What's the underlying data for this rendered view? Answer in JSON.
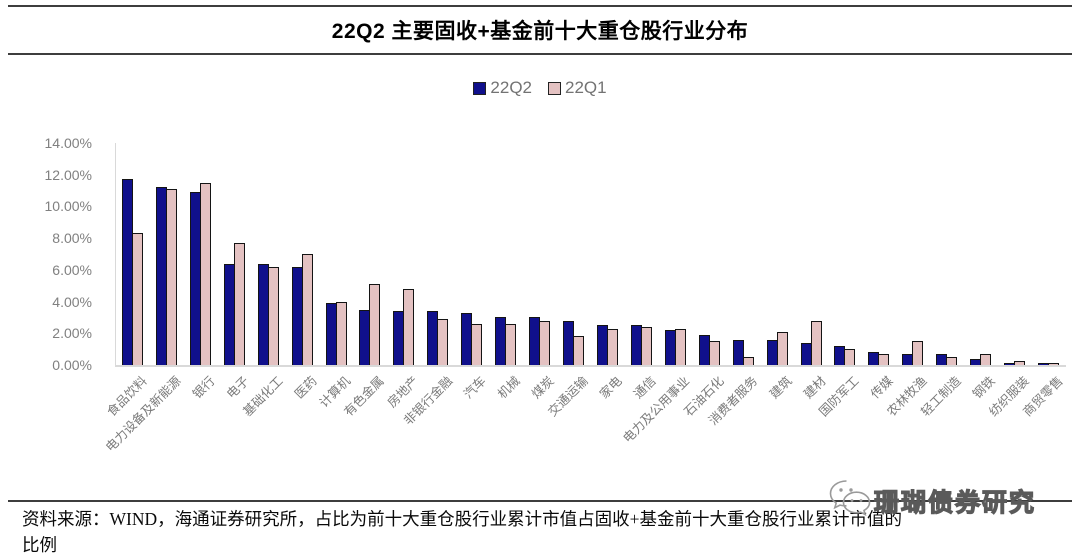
{
  "header": {
    "title": "22Q2 主要固收+基金前十大重仓股行业分布"
  },
  "legend": {
    "items": [
      {
        "label": "22Q2",
        "color": "#10108C"
      },
      {
        "label": "22Q1",
        "color": "#E4C2C2"
      }
    ]
  },
  "chart_data": {
    "type": "bar",
    "title": "22Q2 主要固收+基金前十大重仓股行业分布",
    "categories": [
      "食品饮料",
      "电力设备及新能源",
      "银行",
      "电子",
      "基础化工",
      "医药",
      "计算机",
      "有色金属",
      "房地产",
      "非银行金融",
      "汽车",
      "机械",
      "煤炭",
      "交通运输",
      "家电",
      "通信",
      "电力及公用事业",
      "石油石化",
      "消费者服务",
      "建筑",
      "建材",
      "国防军工",
      "传媒",
      "农林牧渔",
      "轻工制造",
      "钢铁",
      "纺织服装",
      "商贸零售"
    ],
    "series": [
      {
        "name": "22Q2",
        "color": "#10108C",
        "values": [
          11.7,
          11.2,
          10.9,
          6.4,
          6.4,
          6.2,
          3.9,
          3.5,
          3.4,
          3.4,
          3.3,
          3.0,
          3.0,
          2.8,
          2.5,
          2.5,
          2.2,
          1.9,
          1.6,
          1.6,
          1.4,
          1.2,
          0.8,
          0.7,
          0.7,
          0.4,
          0.15,
          0.1
        ]
      },
      {
        "name": "22Q1",
        "color": "#E4C2C2",
        "values": [
          8.3,
          11.1,
          11.5,
          7.7,
          6.2,
          7.0,
          4.0,
          5.1,
          4.8,
          2.9,
          2.6,
          2.6,
          2.8,
          1.8,
          2.3,
          2.4,
          2.3,
          1.5,
          0.5,
          2.1,
          2.8,
          1.0,
          0.7,
          1.5,
          0.5,
          0.7,
          0.25,
          0.1
        ]
      }
    ],
    "xlabel": "",
    "ylabel": "",
    "ylim": [
      0,
      14
    ],
    "yticks": [
      "14.00%",
      "12.00%",
      "10.00%",
      "8.00%",
      "6.00%",
      "4.00%",
      "2.00%",
      "0.00%"
    ],
    "grid": false,
    "legend_position": "top-center"
  },
  "footer": {
    "line1": "资料来源：WIND，海通证券研究所，占比为前十大重仓股行业累计市值占固收+基金前十大重仓股行业累计市值的",
    "line2": "比例"
  },
  "watermark": {
    "icon": "wechat-icon",
    "text": "珊瑚债券研究"
  }
}
